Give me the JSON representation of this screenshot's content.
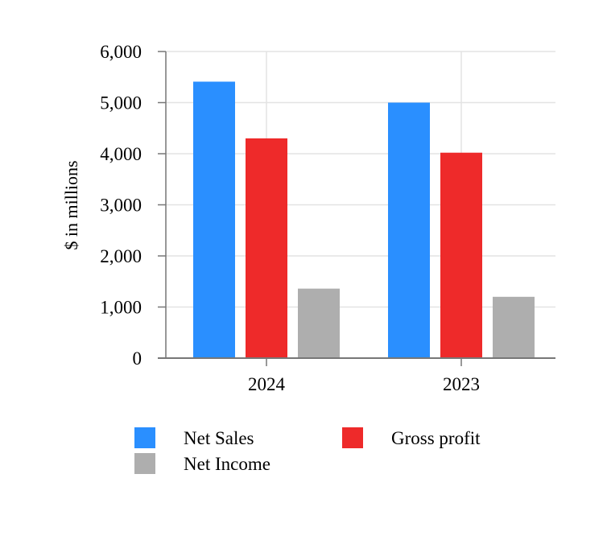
{
  "chart_data": {
    "type": "bar",
    "categories": [
      "2024",
      "2023"
    ],
    "series": [
      {
        "name": "Net Sales",
        "values": [
          5410,
          5000
        ],
        "color": "#2a8fff"
      },
      {
        "name": "Gross profit",
        "values": [
          4300,
          4020
        ],
        "color": "#ee2a2a"
      },
      {
        "name": "Net Income",
        "values": [
          1360,
          1200
        ],
        "color": "#aeaeae"
      }
    ],
    "title": "",
    "xlabel": "",
    "ylabel": "$ in millions",
    "ylim": [
      0,
      6000
    ],
    "yticks": [
      0,
      1000,
      2000,
      3000,
      4000,
      5000,
      6000
    ],
    "ytick_labels": [
      "0",
      "1,000",
      "2,000",
      "3,000",
      "4,000",
      "5,000",
      "6,000"
    ],
    "grid": true,
    "legend": "bottom"
  }
}
